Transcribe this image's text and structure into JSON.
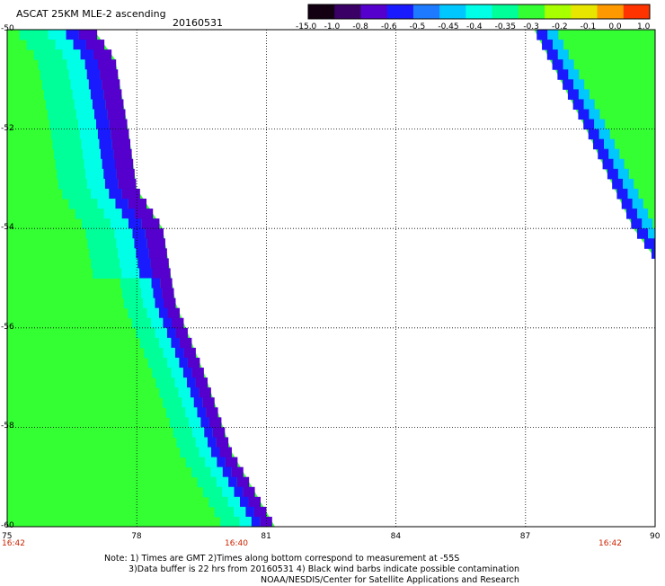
{
  "header": {
    "title": "ASCAT 25KM MLE-2 ascending",
    "date": "20160531"
  },
  "colorbar": {
    "tick_labels": [
      "-15.0",
      "-1.0",
      "-0.8",
      "-0.6",
      "-0.5",
      "-0.45",
      "-0.4",
      "-0.35",
      "-0.3",
      "-0.2",
      "-0.1",
      "0.0",
      "1.0"
    ],
    "colors": [
      "#120012",
      "#3a0066",
      "#5500cc",
      "#1a1aff",
      "#1e7bff",
      "#00c8ff",
      "#00ffe6",
      "#00ff99",
      "#33ff33",
      "#a8ff00",
      "#e6e600",
      "#ff9900",
      "#ff3300"
    ]
  },
  "axes": {
    "x_ticks": [
      "75",
      "78",
      "81",
      "84",
      "87",
      "90"
    ],
    "y_ticks": [
      "-50",
      "-52",
      "-54",
      "-56",
      "-58",
      "-60"
    ],
    "lon_range": [
      75,
      90
    ],
    "lat_range": [
      -60,
      -50
    ]
  },
  "times": [
    "16:42",
    "16:40",
    "16:42"
  ],
  "notes": {
    "line1": "Note: 1) Times are GMT 2)Times along bottom correspond to measurement at -55S",
    "line2": "3)Data buffer is 22 hrs from 20160531 4) Black wind barbs indicate possible contamination",
    "line3": "NOAA/NESDIS/Center for Satellite Applications and Research"
  },
  "swaths": {
    "west": {
      "lon_west": 75,
      "east_edge": [
        [
          -50,
          77.0
        ],
        [
          -50.6,
          77.5
        ],
        [
          -52.0,
          77.8
        ],
        [
          -53.2,
          78.0
        ],
        [
          -54.0,
          78.6
        ],
        [
          -55.5,
          78.9
        ],
        [
          -57.0,
          79.6
        ],
        [
          -58.5,
          80.2
        ],
        [
          -60,
          81.2
        ]
      ],
      "band_levels": [
        "-0.3",
        "-0.35",
        "-0.4",
        "-0.6",
        "-0.8"
      ]
    },
    "east": {
      "lon_east": 90,
      "west_edge": [
        [
          -50,
          87.2
        ],
        [
          -52.0,
          88.4
        ],
        [
          -54.0,
          89.5
        ],
        [
          -54.6,
          90.0
        ]
      ],
      "band_levels": [
        "-0.3",
        "-0.35",
        "-0.45",
        "-0.6"
      ]
    }
  }
}
